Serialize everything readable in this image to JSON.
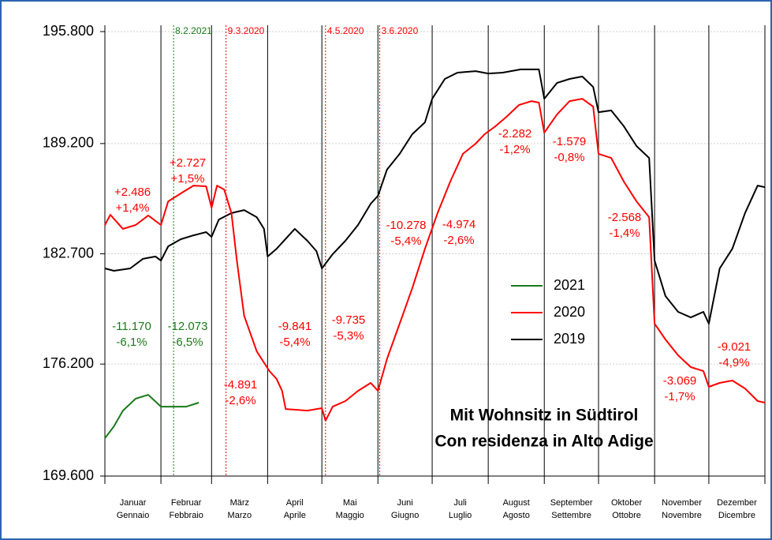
{
  "chart_data": {
    "type": "line",
    "title": [
      "Mit Wohnsitz in Südtirol",
      "Con residenza in Alto Adige"
    ],
    "categories": [
      [
        "Januar",
        "Gennaio"
      ],
      [
        "Februar",
        "Febbraio"
      ],
      [
        "März",
        "Marzo"
      ],
      [
        "April",
        "Aprile"
      ],
      [
        "Mai",
        "Maggio"
      ],
      [
        "Juni",
        "Giugno"
      ],
      [
        "Juli",
        "Luglio"
      ],
      [
        "August",
        "Agosto"
      ],
      [
        "September",
        "Settembre"
      ],
      [
        "Oktober",
        "Ottobre"
      ],
      [
        "November",
        "Novembre"
      ],
      [
        "Dezember",
        "Dicembre"
      ]
    ],
    "xlim": [
      0,
      365
    ],
    "xticks": [
      0,
      31,
      59,
      90,
      120,
      151,
      181,
      212,
      243,
      273,
      304,
      334,
      365
    ],
    "ylim": [
      169600,
      195800
    ],
    "yticks": [
      {
        "value": 169600,
        "label": "169.600"
      },
      {
        "value": 176200,
        "label": "176.200"
      },
      {
        "value": 182700,
        "label": "182.700"
      },
      {
        "value": 189200,
        "label": "189.200"
      },
      {
        "value": 195800,
        "label": "195.800"
      }
    ],
    "grid": true,
    "series": [
      {
        "name": "2021",
        "color": "#1a7a1a",
        "x": [
          0,
          5,
          10,
          17,
          24,
          31,
          38,
          45,
          52
        ],
        "values": [
          171830,
          172530,
          173460,
          174160,
          174390,
          173690,
          173690,
          173690,
          173930
        ]
      },
      {
        "name": "2020",
        "color": "#ff0000",
        "x": [
          0,
          3,
          10,
          17,
          24,
          31,
          35,
          42,
          49,
          56,
          59,
          62,
          66,
          70,
          73,
          77,
          84,
          91,
          95,
          98,
          100,
          112,
          120,
          122,
          126,
          133,
          140,
          147,
          151,
          156,
          163,
          170,
          177,
          184,
          191,
          198,
          205,
          210,
          216,
          222,
          229,
          236,
          240,
          243,
          250,
          257,
          264,
          270,
          273,
          280,
          287,
          294,
          301,
          304,
          310,
          317,
          324,
          331,
          334,
          340,
          347,
          354,
          361,
          365
        ],
        "values": [
          184400,
          185000,
          184170,
          184400,
          184960,
          184400,
          185790,
          186260,
          186720,
          186680,
          185420,
          186720,
          186490,
          185100,
          182300,
          179050,
          176950,
          175790,
          175320,
          174620,
          173550,
          173460,
          173600,
          172860,
          173690,
          174020,
          174620,
          175090,
          174620,
          176490,
          178580,
          180670,
          183000,
          185100,
          186960,
          188590,
          189190,
          189750,
          190220,
          190770,
          191470,
          191700,
          191610,
          189840,
          190910,
          191700,
          191840,
          191380,
          188590,
          188350,
          186960,
          185790,
          184860,
          178580,
          177650,
          176720,
          176020,
          175790,
          174860,
          175090,
          175230,
          174760,
          174020,
          173930
        ]
      },
      {
        "name": "2019",
        "color": "#000000",
        "x": [
          0,
          5,
          14,
          21,
          28,
          31,
          35,
          42,
          49,
          56,
          59,
          63,
          70,
          77,
          84,
          88,
          90,
          95,
          105,
          112,
          117,
          120,
          126,
          133,
          140,
          147,
          151,
          156,
          163,
          170,
          177,
          181,
          188,
          195,
          205,
          212,
          220,
          230,
          240,
          243,
          250,
          257,
          264,
          270,
          273,
          280,
          287,
          294,
          301,
          304,
          310,
          317,
          324,
          331,
          334,
          340,
          347,
          354,
          361,
          365
        ],
        "values": [
          181840,
          181700,
          181840,
          182400,
          182540,
          182300,
          183140,
          183560,
          183790,
          183980,
          183700,
          184720,
          185100,
          185280,
          184860,
          184170,
          182540,
          183000,
          184170,
          183470,
          182860,
          181840,
          182680,
          183470,
          184400,
          185650,
          186120,
          187660,
          188590,
          189750,
          190450,
          191840,
          193010,
          193380,
          193470,
          193330,
          193380,
          193570,
          193570,
          191840,
          192770,
          193010,
          193150,
          192540,
          191050,
          191150,
          190220,
          189050,
          188350,
          182300,
          180210,
          179280,
          178950,
          179280,
          178580,
          181840,
          183000,
          185100,
          186720,
          186630
        ]
      }
    ],
    "event_lines": [
      {
        "text": "8.2.2021",
        "x": 38,
        "color": "#1a7a1a"
      },
      {
        "text": "9.3.2020",
        "x": 67,
        "color": "#ff0000"
      },
      {
        "text": "4.5.2020",
        "x": 122,
        "color": "#ff0000"
      },
      {
        "text": "3.6.2020",
        "x": 152,
        "color": "#ff0000"
      }
    ],
    "annotations": [
      {
        "lines": [
          "-11.170",
          "-6,1%"
        ],
        "color": "#1a7a1a"
      },
      {
        "lines": [
          "-12.073",
          "-6,5%"
        ],
        "color": "#1a7a1a"
      },
      {
        "lines": [
          "+2.486",
          "+1,4%"
        ],
        "color": "#ff0000"
      },
      {
        "lines": [
          "+2.727",
          "+1,5%"
        ],
        "color": "#ff0000"
      },
      {
        "lines": [
          "-4.891",
          "-2,6%"
        ],
        "color": "#ff0000"
      },
      {
        "lines": [
          "-9.841",
          "-5,4%"
        ],
        "color": "#ff0000"
      },
      {
        "lines": [
          "-9.735",
          "-5,3%"
        ],
        "color": "#ff0000"
      },
      {
        "lines": [
          "-10.278",
          "-5,4%"
        ],
        "color": "#ff0000"
      },
      {
        "lines": [
          "-4.974",
          "-2,6%"
        ],
        "color": "#ff0000"
      },
      {
        "lines": [
          "-2.282",
          "-1,2%"
        ],
        "color": "#ff0000"
      },
      {
        "lines": [
          "-1.579",
          "-0,8%"
        ],
        "color": "#ff0000"
      },
      {
        "lines": [
          "-2.568",
          "-1,4%"
        ],
        "color": "#ff0000"
      },
      {
        "lines": [
          "-3.069",
          "-1,7%"
        ],
        "color": "#ff0000"
      },
      {
        "lines": [
          "-9.021",
          "-4,9%"
        ],
        "color": "#ff0000"
      }
    ]
  }
}
